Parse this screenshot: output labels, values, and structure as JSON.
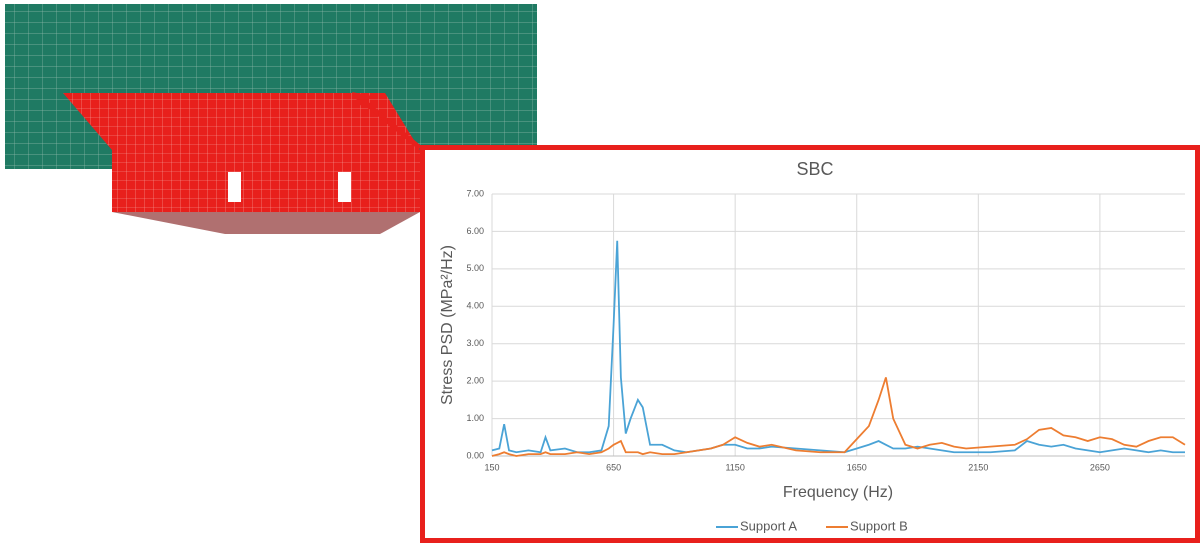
{
  "chart_data": {
    "type": "line",
    "title": "SBC",
    "x_label": "Frequency (Hz)",
    "y_label": "Stress PSD (MPa²/Hz)",
    "x": [
      150,
      180,
      200,
      220,
      250,
      300,
      350,
      370,
      390,
      450,
      500,
      550,
      600,
      630,
      650,
      665,
      680,
      700,
      720,
      750,
      770,
      800,
      850,
      900,
      950,
      1000,
      1050,
      1100,
      1150,
      1200,
      1250,
      1300,
      1400,
      1500,
      1600,
      1650,
      1700,
      1740,
      1770,
      1800,
      1850,
      1900,
      1950,
      2000,
      2050,
      2100,
      2200,
      2300,
      2350,
      2400,
      2450,
      2500,
      2550,
      2600,
      2650,
      2700,
      2750,
      2800,
      2850,
      2900,
      2950,
      3000
    ],
    "series": [
      {
        "name": "Support A",
        "color": "#4aa3d6",
        "values": [
          0.15,
          0.2,
          0.85,
          0.15,
          0.1,
          0.15,
          0.1,
          0.5,
          0.15,
          0.2,
          0.1,
          0.1,
          0.15,
          0.8,
          3.5,
          5.75,
          2.1,
          0.6,
          1.0,
          1.5,
          1.3,
          0.3,
          0.3,
          0.15,
          0.1,
          0.15,
          0.2,
          0.3,
          0.3,
          0.2,
          0.2,
          0.25,
          0.2,
          0.15,
          0.1,
          0.2,
          0.3,
          0.4,
          0.3,
          0.2,
          0.2,
          0.25,
          0.2,
          0.15,
          0.1,
          0.1,
          0.1,
          0.15,
          0.4,
          0.3,
          0.25,
          0.3,
          0.2,
          0.15,
          0.1,
          0.15,
          0.2,
          0.15,
          0.1,
          0.15,
          0.1,
          0.1
        ]
      },
      {
        "name": "Support B",
        "color": "#ed7d31",
        "values": [
          0,
          0.05,
          0.1,
          0.05,
          0,
          0.05,
          0.05,
          0.1,
          0.05,
          0.05,
          0.1,
          0.05,
          0.1,
          0.2,
          0.3,
          0.35,
          0.4,
          0.1,
          0.1,
          0.1,
          0.05,
          0.1,
          0.05,
          0.05,
          0.1,
          0.15,
          0.2,
          0.3,
          0.5,
          0.35,
          0.25,
          0.3,
          0.15,
          0.1,
          0.1,
          0.45,
          0.8,
          1.5,
          2.1,
          1.0,
          0.3,
          0.2,
          0.3,
          0.35,
          0.25,
          0.2,
          0.25,
          0.3,
          0.45,
          0.7,
          0.75,
          0.55,
          0.5,
          0.4,
          0.5,
          0.45,
          0.3,
          0.25,
          0.4,
          0.5,
          0.5,
          0.3
        ]
      }
    ],
    "xlim": [
      150,
      3000
    ],
    "xticks": [
      150,
      650,
      1150,
      1650,
      2150,
      2650
    ],
    "ylim": [
      0,
      7
    ],
    "yticks": [
      {
        "value": 0,
        "label": "0.00"
      },
      {
        "value": 1,
        "label": "1.00"
      },
      {
        "value": 2,
        "label": "2.00"
      },
      {
        "value": 3,
        "label": "3.00"
      },
      {
        "value": 4,
        "label": "4.00"
      },
      {
        "value": 5,
        "label": "5.00"
      },
      {
        "value": 6,
        "label": "6.00"
      },
      {
        "value": 7,
        "label": "7.00"
      }
    ],
    "grid": true,
    "legend": "bottom"
  }
}
